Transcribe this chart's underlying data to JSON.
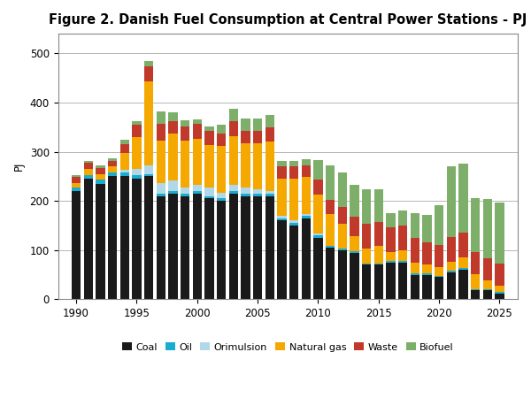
{
  "title": "Figure 2. Danish Fuel Consumption at Central Power Stations - PJ",
  "ylabel": "PJ",
  "years": [
    1990,
    1991,
    1992,
    1993,
    1994,
    1995,
    1996,
    1997,
    1998,
    1999,
    2000,
    2001,
    2002,
    2003,
    2004,
    2005,
    2006,
    2007,
    2008,
    2009,
    2010,
    2011,
    2012,
    2013,
    2014,
    2015,
    2016,
    2017,
    2018,
    2019,
    2020,
    2021,
    2022,
    2023,
    2024,
    2025
  ],
  "coal": [
    220,
    245,
    235,
    250,
    250,
    245,
    250,
    210,
    215,
    210,
    215,
    205,
    200,
    215,
    210,
    210,
    210,
    160,
    150,
    165,
    125,
    105,
    100,
    95,
    70,
    70,
    75,
    75,
    50,
    50,
    45,
    55,
    60,
    18,
    18,
    12
  ],
  "oil": [
    8,
    8,
    8,
    8,
    8,
    8,
    5,
    5,
    5,
    5,
    5,
    5,
    5,
    5,
    5,
    5,
    5,
    5,
    5,
    5,
    5,
    3,
    3,
    3,
    3,
    3,
    3,
    3,
    3,
    3,
    3,
    3,
    3,
    3,
    3,
    3
  ],
  "orimulsion": [
    0,
    0,
    0,
    0,
    5,
    12,
    18,
    22,
    22,
    12,
    12,
    18,
    12,
    12,
    12,
    8,
    5,
    5,
    5,
    3,
    3,
    0,
    0,
    0,
    0,
    0,
    0,
    0,
    0,
    0,
    0,
    0,
    0,
    0,
    0,
    0
  ],
  "natural_gas": [
    8,
    12,
    12,
    12,
    35,
    65,
    170,
    85,
    95,
    95,
    95,
    85,
    95,
    100,
    90,
    95,
    100,
    75,
    85,
    75,
    80,
    65,
    50,
    30,
    30,
    35,
    18,
    22,
    22,
    18,
    18,
    18,
    22,
    30,
    18,
    12
  ],
  "waste": [
    12,
    12,
    12,
    12,
    18,
    25,
    30,
    35,
    25,
    30,
    30,
    30,
    25,
    30,
    25,
    25,
    30,
    25,
    25,
    25,
    30,
    30,
    35,
    40,
    50,
    50,
    50,
    50,
    50,
    45,
    45,
    50,
    50,
    45,
    45,
    45
  ],
  "biofuel": [
    5,
    5,
    5,
    5,
    8,
    8,
    12,
    25,
    18,
    12,
    8,
    8,
    18,
    25,
    25,
    25,
    25,
    12,
    12,
    12,
    40,
    70,
    70,
    65,
    70,
    65,
    30,
    30,
    50,
    55,
    80,
    145,
    140,
    110,
    120,
    125
  ],
  "colors": {
    "coal": "#1a1a1a",
    "oil": "#1aaccf",
    "orimulsion": "#b0d8e8",
    "natural_gas": "#f5a800",
    "waste": "#c0392b",
    "biofuel": "#7daf6a"
  },
  "ylim": [
    0,
    540
  ],
  "yticks": [
    0,
    100,
    200,
    300,
    400,
    500
  ],
  "xlim": [
    1988.5,
    2026.5
  ],
  "xticks": [
    1990,
    1995,
    2000,
    2005,
    2010,
    2015,
    2020,
    2025
  ],
  "bar_width": 0.75,
  "figsize": [
    6.0,
    4.5
  ],
  "dpi": 100,
  "title_fontsize": 10.5,
  "axis_fontsize": 8.5,
  "legend_fontsize": 8,
  "background_color": "#ffffff"
}
